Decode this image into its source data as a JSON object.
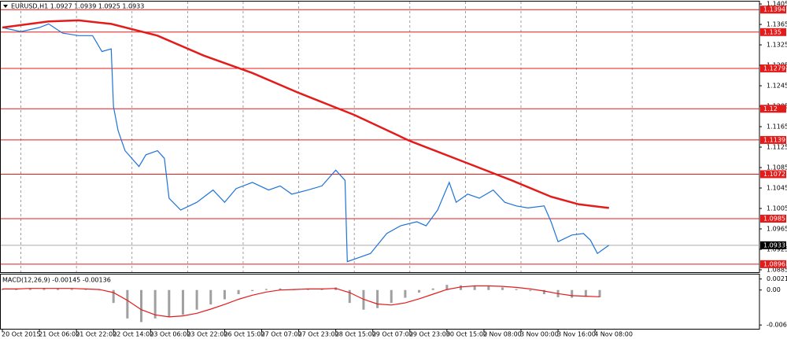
{
  "chart_data": [
    {
      "type": "line",
      "title": "EURUSD,H1 1.0927 1.0939 1.0925 1.0933",
      "xlim": [
        0,
        327
      ],
      "ylim": [
        1.08804,
        1.14097
      ],
      "yticks": [
        1.1405,
        1.1365,
        1.1325,
        1.1285,
        1.1245,
        1.1205,
        1.1165,
        1.1125,
        1.1085,
        1.1045,
        1.1005,
        1.0965,
        1.0925,
        1.0885
      ],
      "xticks": [
        {
          "value": 0,
          "label": "20 Oct 2015"
        },
        {
          "value": 16,
          "label": "21 Oct 06:00"
        },
        {
          "value": 32,
          "label": "21 Oct 22:00"
        },
        {
          "value": 48,
          "label": "22 Oct 14:00"
        },
        {
          "value": 64,
          "label": "23 Oct 06:00"
        },
        {
          "value": 80,
          "label": "23 Oct 22:00"
        },
        {
          "value": 96,
          "label": "26 Oct 15:00"
        },
        {
          "value": 112,
          "label": "27 Oct 07:00"
        },
        {
          "value": 128,
          "label": "27 Oct 23:00"
        },
        {
          "value": 144,
          "label": "28 Oct 15:00"
        },
        {
          "value": 160,
          "label": "29 Oct 07:00"
        },
        {
          "value": 176,
          "label": "29 Oct 23:00"
        },
        {
          "value": 192,
          "label": "30 Oct 15:00"
        },
        {
          "value": 208,
          "label": "2 Nov 08:00"
        },
        {
          "value": 224,
          "label": "3 Nov 00:00"
        },
        {
          "value": 240,
          "label": "3 Nov 16:00"
        },
        {
          "value": 256,
          "label": "4 Nov 08:00"
        }
      ],
      "grid": "x",
      "xgrid": [
        8,
        32,
        56,
        80,
        104,
        128,
        152,
        176,
        200,
        224,
        248,
        272
      ],
      "levels": [
        1.1394,
        1.135,
        1.1279,
        1.12,
        1.1139,
        1.1072,
        1.0985,
        1.0896
      ],
      "level_color": "#e31b1b",
      "current_price": 1.0933,
      "series": [
        {
          "name": "EURUSD",
          "color": "#1e73d8",
          "x": [
            0,
            8,
            16,
            20,
            26,
            33,
            39,
            43,
            47,
            48,
            50,
            53,
            59,
            62,
            67,
            70,
            72,
            77,
            84,
            91,
            96,
            101,
            108,
            115,
            120,
            125,
            132,
            138,
            144,
            148,
            149,
            154,
            159,
            166,
            172,
            179,
            183,
            188,
            193,
            196,
            201,
            206,
            212,
            217,
            222,
            227,
            234,
            237,
            240,
            246,
            251,
            254,
            257,
            262
          ],
          "values": [
            1.1359,
            1.1351,
            1.1359,
            1.1366,
            1.1348,
            1.1343,
            1.1343,
            1.1312,
            1.1317,
            1.1204,
            1.1157,
            1.1118,
            1.1087,
            1.111,
            1.1118,
            1.1103,
            1.1025,
            1.1002,
            1.1017,
            1.1041,
            1.1017,
            1.1044,
            1.1056,
            1.1041,
            1.1049,
            1.1033,
            1.1041,
            1.1049,
            1.108,
            1.106,
            1.0901,
            1.0909,
            1.0917,
            1.0956,
            1.0971,
            1.0979,
            1.0971,
            1.1002,
            1.1056,
            1.1017,
            1.1033,
            1.1025,
            1.1041,
            1.1017,
            1.101,
            1.1006,
            1.101,
            1.0979,
            1.094,
            1.0953,
            1.0956,
            1.0943,
            1.0917,
            1.0933
          ]
        },
        {
          "name": "MA",
          "color": "#e31b1b",
          "x": [
            0,
            20,
            33,
            47,
            67,
            87,
            108,
            128,
            152,
            176,
            200,
            220,
            237,
            249,
            262
          ],
          "values": [
            1.1359,
            1.1371,
            1.1373,
            1.1366,
            1.1343,
            1.1304,
            1.127,
            1.1231,
            1.1188,
            1.1137,
            1.1095,
            1.106,
            1.1028,
            1.1013,
            1.1006
          ]
        }
      ]
    },
    {
      "type": "bar",
      "title": "MACD(12,26,9) -0.00145 -0.00136",
      "xlim": [
        0,
        327
      ],
      "ylim": [
        -0.0075,
        0.003
      ],
      "yticks": [
        0.00213,
        {
          "value": 0,
          "label": "0.00"
        },
        -0.00677
      ],
      "series": [
        {
          "name": "MACD",
          "color": "#a0a0a0",
          "x": [
            0,
            6,
            12,
            18,
            24,
            30,
            36,
            42,
            48,
            54,
            60,
            66,
            72,
            78,
            84,
            90,
            96,
            102,
            108,
            114,
            120,
            126,
            132,
            138,
            144,
            150,
            156,
            162,
            168,
            174,
            180,
            186,
            192,
            198,
            204,
            210,
            216,
            222,
            228,
            234,
            240,
            246,
            252,
            258
          ],
          "values": [
            0.0002,
            0.0003,
            0.0003,
            0.0004,
            0.0003,
            0.0002,
            0.0001,
            0.0,
            -0.0025,
            -0.0055,
            -0.0062,
            -0.0055,
            -0.0052,
            -0.0048,
            -0.0038,
            -0.0028,
            -0.0018,
            -0.0008,
            -0.0002,
            0.0002,
            0.0003,
            0.0002,
            0.0002,
            0.0003,
            0.0005,
            -0.0025,
            -0.0038,
            -0.0035,
            -0.0025,
            -0.0015,
            -0.0005,
            0.0003,
            0.001,
            0.0009,
            0.0007,
            0.0007,
            0.0005,
            0.0002,
            -0.0002,
            -0.0008,
            -0.0014,
            -0.0015,
            -0.0013,
            -0.0014
          ]
        },
        {
          "name": "Signal",
          "color": "#e31b1b",
          "type": "line",
          "x": [
            0,
            6,
            12,
            18,
            24,
            30,
            36,
            42,
            48,
            54,
            60,
            66,
            72,
            78,
            84,
            90,
            96,
            102,
            108,
            114,
            120,
            126,
            132,
            138,
            144,
            150,
            156,
            162,
            168,
            174,
            180,
            186,
            192,
            198,
            204,
            210,
            216,
            222,
            228,
            234,
            240,
            246,
            252,
            258
          ],
          "values": [
            0.0002,
            0.0002,
            0.0003,
            0.0003,
            0.0003,
            0.0003,
            0.0002,
            0.0001,
            -0.0005,
            -0.002,
            -0.0038,
            -0.0048,
            -0.0052,
            -0.005,
            -0.0045,
            -0.0037,
            -0.0028,
            -0.0018,
            -0.001,
            -0.0004,
            0.0,
            0.0001,
            0.0002,
            0.0002,
            0.0003,
            -0.0005,
            -0.0018,
            -0.0027,
            -0.0029,
            -0.0025,
            -0.0017,
            -0.0008,
            0.0001,
            0.0006,
            0.0008,
            0.0008,
            0.0007,
            0.0005,
            0.0002,
            -0.0002,
            -0.0007,
            -0.0011,
            -0.0012,
            -0.0013
          ]
        }
      ]
    }
  ]
}
